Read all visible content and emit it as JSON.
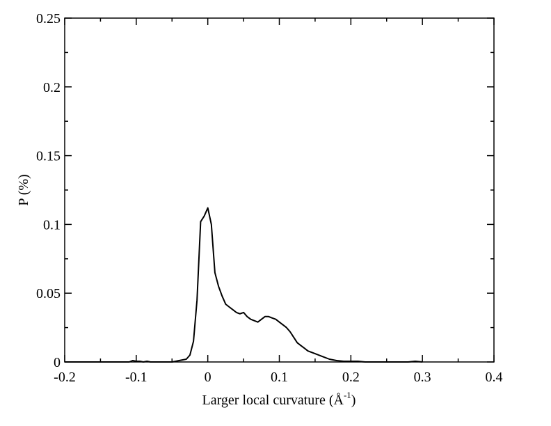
{
  "chart_data": {
    "type": "line",
    "title": "",
    "xlabel": "Larger local curvature (Å",
    "xlabel_superscript": "-1",
    "xlabel_suffix": ")",
    "ylabel": "P (%)",
    "xlim": [
      -0.2,
      0.4
    ],
    "ylim": [
      0,
      0.25
    ],
    "xticks": [
      -0.2,
      -0.1,
      0,
      0.1,
      0.2,
      0.3,
      0.4
    ],
    "xtick_labels": [
      "-0.2",
      "-0.1",
      "0",
      "0.1",
      "0.2",
      "0.3",
      "0.4"
    ],
    "yticks": [
      0,
      0.05,
      0.1,
      0.15,
      0.2,
      0.25
    ],
    "ytick_labels": [
      "0",
      "0.05",
      "0.1",
      "0.15",
      "0.2",
      "0.25"
    ],
    "grid": false,
    "line_color": "#000000",
    "series": [
      {
        "x": [
          -0.2,
          -0.15,
          -0.11,
          -0.105,
          -0.1,
          -0.095,
          -0.09,
          -0.085,
          -0.08,
          -0.07,
          -0.06,
          -0.05,
          -0.04,
          -0.03,
          -0.025,
          -0.02,
          -0.015,
          -0.01,
          -0.005,
          0.0,
          0.005,
          0.01,
          0.015,
          0.02,
          0.025,
          0.03,
          0.035,
          0.04,
          0.045,
          0.05,
          0.055,
          0.06,
          0.065,
          0.07,
          0.075,
          0.08,
          0.085,
          0.09,
          0.095,
          0.1,
          0.105,
          0.11,
          0.115,
          0.12,
          0.125,
          0.13,
          0.135,
          0.14,
          0.15,
          0.16,
          0.17,
          0.18,
          0.19,
          0.2,
          0.21,
          0.22,
          0.23,
          0.24,
          0.28,
          0.29,
          0.3
        ],
        "y": [
          0,
          0,
          0,
          0.001,
          0.0005,
          0.0005,
          0,
          0.0005,
          0,
          0,
          0,
          0,
          0.001,
          0.002,
          0.005,
          0.015,
          0.045,
          0.102,
          0.106,
          0.112,
          0.1,
          0.065,
          0.055,
          0.048,
          0.042,
          0.04,
          0.038,
          0.036,
          0.035,
          0.036,
          0.033,
          0.031,
          0.03,
          0.029,
          0.031,
          0.033,
          0.033,
          0.032,
          0.031,
          0.029,
          0.027,
          0.025,
          0.022,
          0.018,
          0.014,
          0.012,
          0.01,
          0.008,
          0.006,
          0.004,
          0.002,
          0.001,
          0.0005,
          0.0005,
          0.0005,
          0,
          0,
          0,
          0,
          0.0005,
          0
        ]
      }
    ]
  }
}
